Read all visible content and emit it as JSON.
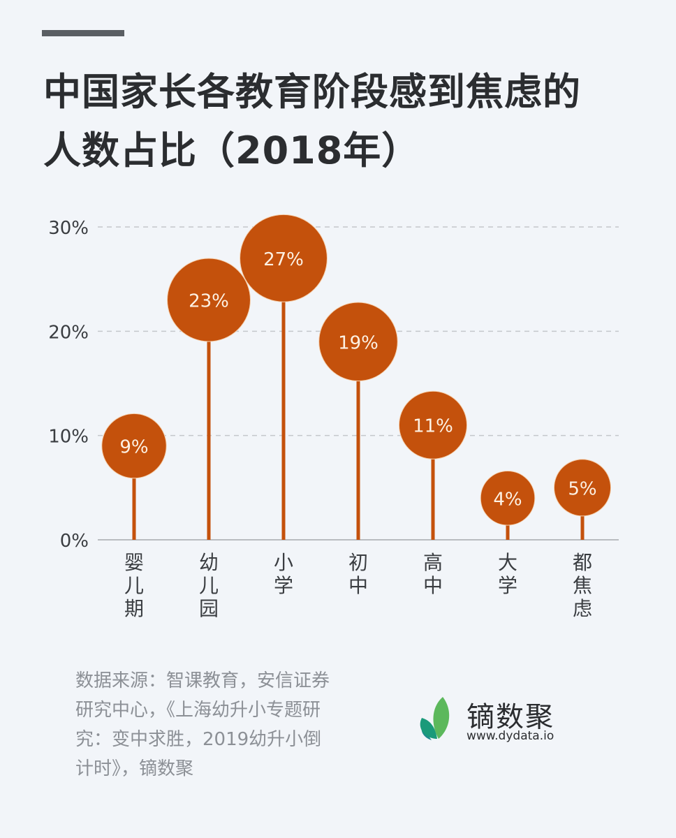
{
  "header": {
    "title_line1": "中国家长各教育阶段感到焦虑的",
    "title_line2": "人数占比（2018年）"
  },
  "chart_data": {
    "type": "bar",
    "subtype": "lollipop",
    "title": "中国家长各教育阶段感到焦虑的人数占比（2018年）",
    "xlabel": "",
    "ylabel": "",
    "categories": [
      "婴儿期",
      "幼儿园",
      "小学",
      "初中",
      "高中",
      "大学",
      "都焦虑"
    ],
    "values": [
      9,
      23,
      27,
      19,
      11,
      4,
      5
    ],
    "value_labels": [
      "9%",
      "23%",
      "27%",
      "19%",
      "11%",
      "4%",
      "5%"
    ],
    "ylim": [
      0,
      30
    ],
    "yticks": [
      0,
      10,
      20,
      30
    ],
    "ytick_labels": [
      "0%",
      "10%",
      "20%",
      "30%"
    ],
    "grid": true,
    "grid_style": "dashed horizontal",
    "legend": null,
    "colors": {
      "bar": "#c4510c",
      "label_text": "#fdf1e3",
      "axis": "#b9bcc0",
      "grid": "#c4c7cb",
      "tick_text": "#3a3d41"
    }
  },
  "footer": {
    "source_lines": [
      "数据来源：智课教育，安信证券",
      "研究中心，《上海幼升小专题研",
      "究：变中求胜，2019幼升小倒",
      "计时》，镝数聚"
    ],
    "logo_name": "镝数聚",
    "logo_url": "www.dydata.io",
    "logo_icon": "leaf-logo-icon"
  }
}
